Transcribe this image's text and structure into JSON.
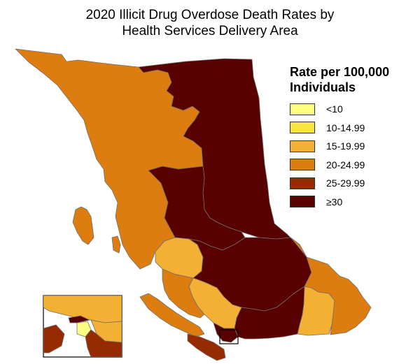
{
  "title": {
    "line1": "2020 Illicit Drug Overdose Death Rates by",
    "line2": "Health Services Delivery Area"
  },
  "legend": {
    "title_line1": "Rate per 100,000",
    "title_line2": "Individuals",
    "items": [
      {
        "label": "<10",
        "color": "#ffff80"
      },
      {
        "label": "10-14.99",
        "color": "#f8e441"
      },
      {
        "label": "15-19.99",
        "color": "#f4b032"
      },
      {
        "label": "20-24.99",
        "color": "#de7d0f"
      },
      {
        "label": "25-29.99",
        "color": "#962b00"
      },
      {
        "label": "≥30",
        "color": "#590000"
      }
    ]
  },
  "colors": {
    "boundary": "#6f6f6f",
    "inset_frame": "#000000",
    "background": "#ffffff"
  }
}
